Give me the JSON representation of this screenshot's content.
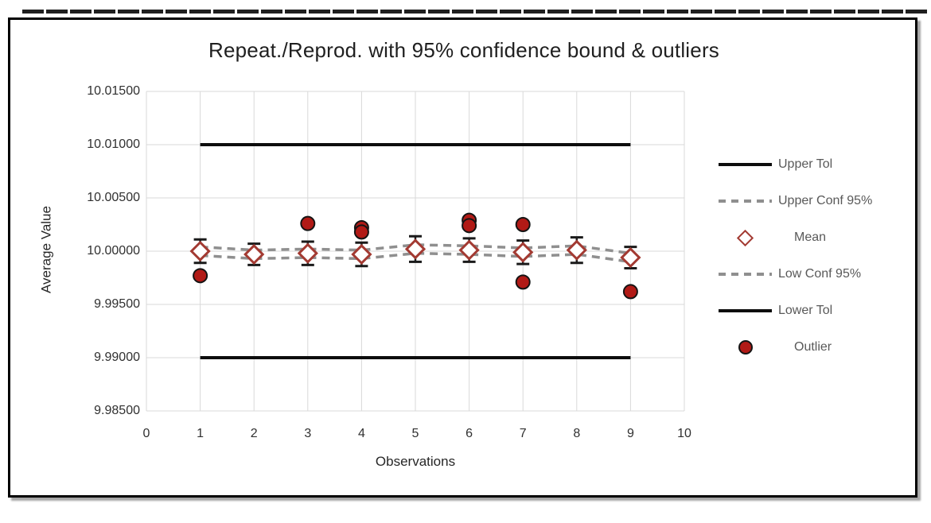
{
  "chart_data": {
    "type": "scatter",
    "title": "Repeat./Reprod. with 95% confidence bound & outliers",
    "xlabel": "Observations",
    "ylabel": "Average Value",
    "xlim": [
      0,
      10
    ],
    "ylim": [
      9.985,
      10.015
    ],
    "x_ticks": [
      "0",
      "1",
      "2",
      "3",
      "4",
      "5",
      "6",
      "7",
      "8",
      "9",
      "10"
    ],
    "y_ticks": [
      "10.01500",
      "10.01000",
      "10.00500",
      "10.00000",
      "9.99500",
      "9.99000",
      "9.98500"
    ],
    "grid": true,
    "grid_color": "#d9d9d9",
    "legend_position": "right",
    "series": [
      {
        "name": "Upper Tol",
        "type": "line",
        "style": "solid",
        "color": "#0d0d0d",
        "width": 4,
        "x": [
          1,
          9
        ],
        "y": [
          10.01,
          10.01
        ]
      },
      {
        "name": "Upper Conf 95%",
        "type": "line",
        "style": "dashed",
        "color": "#8f8f8f",
        "width": 3.5,
        "x": [
          1,
          2,
          3,
          4,
          5,
          6,
          7,
          8,
          9
        ],
        "y": [
          10.0004,
          10.0001,
          10.0002,
          10.0001,
          10.0006,
          10.0005,
          10.0003,
          10.0005,
          9.9998
        ]
      },
      {
        "name": "Mean",
        "type": "scatter",
        "marker": "open-diamond",
        "color": "#a33a32",
        "fill": "#ffffff",
        "error_color": "#1a1a1a",
        "x": [
          1,
          2,
          3,
          4,
          5,
          6,
          7,
          8,
          9
        ],
        "y": [
          10.0,
          9.9997,
          9.9998,
          9.9997,
          10.0002,
          10.0001,
          9.9999,
          10.0001,
          9.9994
        ],
        "error_y": [
          0.0011,
          0.001,
          0.0011,
          0.0011,
          0.0012,
          0.0011,
          0.0011,
          0.0012,
          0.001
        ]
      },
      {
        "name": "Low Conf 95%",
        "type": "line",
        "style": "dashed",
        "color": "#8f8f8f",
        "width": 3.5,
        "x": [
          1,
          2,
          3,
          4,
          5,
          6,
          7,
          8,
          9
        ],
        "y": [
          9.9996,
          9.9993,
          9.9994,
          9.9993,
          9.9998,
          9.9997,
          9.9995,
          9.9997,
          9.999
        ]
      },
      {
        "name": "Lower Tol",
        "type": "line",
        "style": "solid",
        "color": "#0d0d0d",
        "width": 4,
        "x": [
          1,
          9
        ],
        "y": [
          9.99,
          9.99
        ]
      },
      {
        "name": "Outlier",
        "type": "scatter",
        "marker": "circle",
        "color": "#b11a16",
        "outline": "#141414",
        "points": [
          [
            1,
            9.9977
          ],
          [
            3,
            10.0026
          ],
          [
            4,
            10.0022
          ],
          [
            4,
            10.0018
          ],
          [
            6,
            10.0029
          ],
          [
            6,
            10.0024
          ],
          [
            7,
            10.0025
          ],
          [
            7,
            9.9971
          ],
          [
            9,
            9.9962
          ]
        ]
      }
    ],
    "legend": {
      "items": [
        {
          "label": "Upper Tol",
          "key": "solid-line"
        },
        {
          "label": "Upper Conf 95%",
          "key": "dashed-line"
        },
        {
          "label": "Mean",
          "key": "open-diamond"
        },
        {
          "label": "Low Conf 95%",
          "key": "dashed-line"
        },
        {
          "label": "Lower Tol",
          "key": "solid-line"
        },
        {
          "label": "Outlier",
          "key": "filled-circle"
        }
      ]
    }
  }
}
